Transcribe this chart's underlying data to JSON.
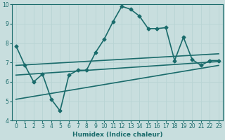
{
  "title": "",
  "xlabel": "Humidex (Indice chaleur)",
  "ylabel": "",
  "bg_color": "#c8dede",
  "line_color": "#1a6b6b",
  "grid_color": "#b8d4d4",
  "xlim": [
    -0.5,
    23.5
  ],
  "ylim": [
    4,
    10
  ],
  "xtick_labels": [
    "0",
    "1",
    "2",
    "3",
    "4",
    "5",
    "6",
    "7",
    "8",
    "9",
    "10",
    "11",
    "12",
    "13",
    "14",
    "15",
    "16",
    "17",
    "18",
    "19",
    "20",
    "21",
    "22",
    "23"
  ],
  "xticks": [
    0,
    1,
    2,
    3,
    4,
    5,
    6,
    7,
    8,
    9,
    10,
    11,
    12,
    13,
    14,
    15,
    16,
    17,
    18,
    19,
    20,
    21,
    22,
    23
  ],
  "yticks": [
    4,
    5,
    6,
    7,
    8,
    9,
    10
  ],
  "series": [
    {
      "x": [
        0,
        1,
        2,
        3,
        4,
        5,
        6,
        7,
        8,
        9,
        10,
        11,
        12,
        13,
        14,
        15,
        16,
        17,
        18,
        19,
        20,
        21,
        22,
        23
      ],
      "y": [
        7.85,
        6.85,
        6.0,
        6.4,
        5.1,
        4.5,
        6.35,
        6.6,
        6.6,
        7.5,
        8.2,
        9.1,
        9.9,
        9.75,
        9.4,
        8.75,
        8.75,
        8.8,
        7.1,
        8.3,
        7.15,
        6.85,
        7.1,
        7.1
      ],
      "marker": "D",
      "markersize": 2.5,
      "linewidth": 1.2
    },
    {
      "x": [
        0,
        23
      ],
      "y": [
        6.85,
        7.45
      ],
      "marker": null,
      "linewidth": 1.2
    },
    {
      "x": [
        0,
        23
      ],
      "y": [
        6.35,
        7.05
      ],
      "marker": null,
      "linewidth": 1.2
    },
    {
      "x": [
        0,
        23
      ],
      "y": [
        5.1,
        6.85
      ],
      "marker": null,
      "linewidth": 1.2
    }
  ]
}
